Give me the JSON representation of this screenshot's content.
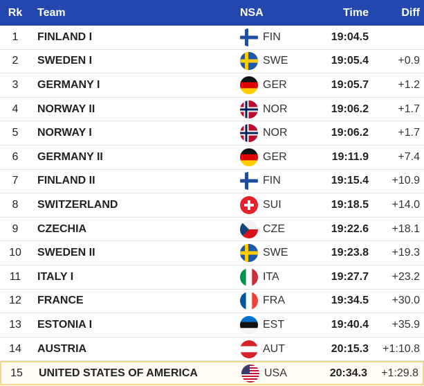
{
  "table": {
    "header": [
      "Rk",
      "Team",
      "NSA",
      "Time",
      "Diff"
    ],
    "rows": [
      {
        "rk": 1,
        "team": "FINLAND I",
        "nsa": "FIN",
        "time": "19:04.5"
      },
      {
        "rk": 2,
        "team": "SWEDEN I",
        "nsa": "SWE",
        "time": "19:05.4",
        "diff": "+0.9"
      },
      {
        "rk": 3,
        "team": "GERMANY I",
        "nsa": "GER",
        "time": "19:05.7",
        "diff": "+1.2"
      },
      {
        "rk": 4,
        "team": "NORWAY II",
        "nsa": "NOR",
        "time": "19:06.2",
        "diff": "+1.7"
      },
      {
        "rk": 5,
        "team": "NORWAY I",
        "nsa": "NOR",
        "time": "19:06.2",
        "diff": "+1.7"
      },
      {
        "rk": 6,
        "team": "GERMANY II",
        "nsa": "GER",
        "time": "19:11.9",
        "diff": "+7.4"
      },
      {
        "rk": 7,
        "team": "FINLAND II",
        "nsa": "FIN",
        "time": "19:15.4",
        "diff": "+10.9"
      },
      {
        "rk": 8,
        "team": "SWITZERLAND",
        "nsa": "SUI",
        "time": "19:18.5",
        "diff": "+14.0"
      },
      {
        "rk": 9,
        "team": "CZECHIA",
        "nsa": "CZE",
        "time": "19:22.6",
        "diff": "+18.1"
      },
      {
        "rk": 10,
        "team": "SWEDEN II",
        "nsa": "SWE",
        "time": "19:23.8",
        "diff": "+19.3"
      },
      {
        "rk": 11,
        "team": "ITALY I",
        "nsa": "ITA",
        "time": "19:27.7",
        "diff": "+23.2"
      },
      {
        "rk": 12,
        "team": "FRANCE",
        "nsa": "FRA",
        "time": "19:34.5",
        "diff": "+30.0"
      },
      {
        "rk": 13,
        "team": "ESTONIA I",
        "nsa": "EST",
        "time": "19:40.4",
        "diff": "+35.9"
      },
      {
        "rk": 14,
        "team": "AUSTRIA",
        "nsa": "AUT",
        "time": "20:15.3",
        "diff": "+1:10.8"
      },
      {
        "rk": 15,
        "team": "UNITED STATES OF AMERICA",
        "nsa": "USA",
        "time": "20:34.3",
        "diff": "+1:29.8"
      }
    ]
  }
}
